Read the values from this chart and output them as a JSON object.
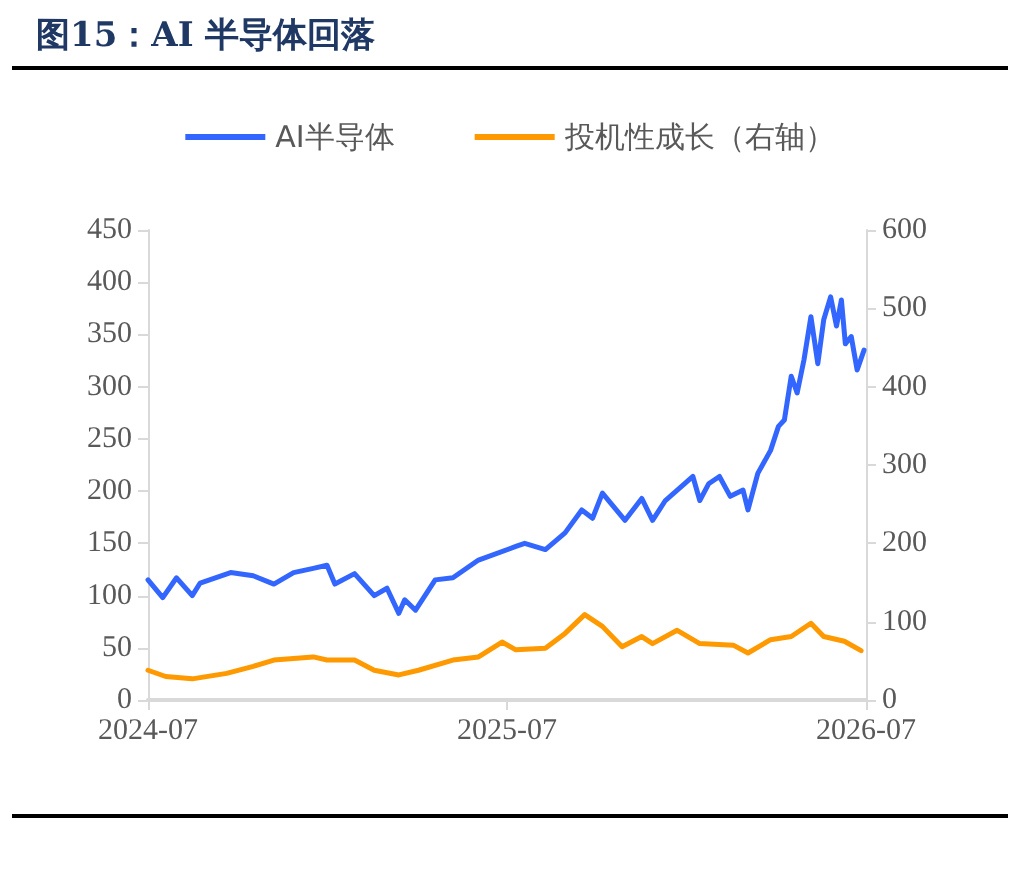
{
  "chart_data": {
    "type": "line",
    "title": "图15：AI 半导体回落",
    "xlim": [
      "2024-07",
      "2026-07"
    ],
    "xticks": [
      "2024-07",
      "2025-07",
      "2026-07"
    ],
    "ylim": [
      0,
      450
    ],
    "yticks": [
      0,
      50,
      100,
      150,
      200,
      250,
      300,
      350,
      400,
      450
    ],
    "y2lim": [
      0,
      600
    ],
    "y2ticks": [
      0,
      100,
      200,
      300,
      400,
      500,
      600
    ],
    "legend": "top",
    "grid": false,
    "marker": "none",
    "line_style": "solid",
    "series": [
      {
        "name": "AI半导体",
        "color": "#3366ff",
        "x": [
          "2024-07-01",
          "2024-07-16",
          "2024-07-30",
          "2024-08-15",
          "2024-08-23",
          "2024-09-23",
          "2024-10-16",
          "2024-11-06",
          "2024-11-26",
          "2024-12-16",
          "2024-12-30",
          "2025-01-07",
          "2025-01-27",
          "2025-02-16",
          "2025-03-01",
          "2025-03-13",
          "2025-03-19",
          "2025-03-30",
          "2025-04-19",
          "2025-05-07",
          "2025-06-02",
          "2025-07-10",
          "2025-07-19",
          "2025-08-09",
          "2025-08-29",
          "2025-09-15",
          "2025-09-26",
          "2025-10-06",
          "2025-10-29",
          "2025-11-15",
          "2025-11-26",
          "2025-12-09",
          "2026-01-06",
          "2026-01-13",
          "2026-01-22",
          "2026-02-02",
          "2026-02-13",
          "2026-02-26",
          "2026-03-03",
          "2026-03-13",
          "2026-03-26",
          "2026-04-03",
          "2026-04-09",
          "2026-04-16",
          "2026-04-22",
          "2026-04-29",
          "2026-05-06",
          "2026-05-13",
          "2026-05-19",
          "2026-05-26",
          "2026-06-01",
          "2026-06-06",
          "2026-06-10",
          "2026-06-16",
          "2026-06-22",
          "2026-06-29"
        ],
        "values": [
          115,
          98,
          117,
          100,
          112,
          122,
          119,
          111,
          122,
          126,
          129,
          111,
          121,
          100,
          107,
          83,
          96,
          86,
          115,
          117,
          134,
          147,
          150,
          144,
          160,
          182,
          174,
          198,
          172,
          193,
          172,
          191,
          214,
          191,
          207,
          214,
          195,
          201,
          182,
          217,
          239,
          262,
          268,
          310,
          294,
          326,
          367,
          322,
          364,
          386,
          358,
          383,
          341,
          348,
          316,
          335
        ]
      },
      {
        "name": "投机性成长（右轴）",
        "color": "#ff9900",
        "axis": "y2",
        "x": [
          "2024-07-01",
          "2024-07-19",
          "2024-08-15",
          "2024-09-19",
          "2024-10-16",
          "2024-11-06",
          "2024-12-16",
          "2024-12-30",
          "2025-01-27",
          "2025-02-16",
          "2025-03-13",
          "2025-04-02",
          "2025-05-07",
          "2025-06-02",
          "2025-06-26",
          "2025-07-10",
          "2025-08-09",
          "2025-08-29",
          "2025-09-18",
          "2025-10-06",
          "2025-10-26",
          "2025-11-15",
          "2025-11-26",
          "2025-12-21",
          "2026-01-13",
          "2026-02-16",
          "2026-03-03",
          "2026-03-26",
          "2026-04-16",
          "2026-05-06",
          "2026-05-19",
          "2026-06-09",
          "2026-06-26"
        ],
        "values": [
          38,
          30,
          27,
          34,
          43,
          51,
          55,
          51,
          51,
          38,
          32,
          38,
          51,
          55,
          74,
          64,
          66,
          85,
          109,
          94,
          68,
          81,
          72,
          89,
          72,
          70,
          60,
          77,
          81,
          98,
          81,
          75,
          63
        ]
      }
    ]
  }
}
